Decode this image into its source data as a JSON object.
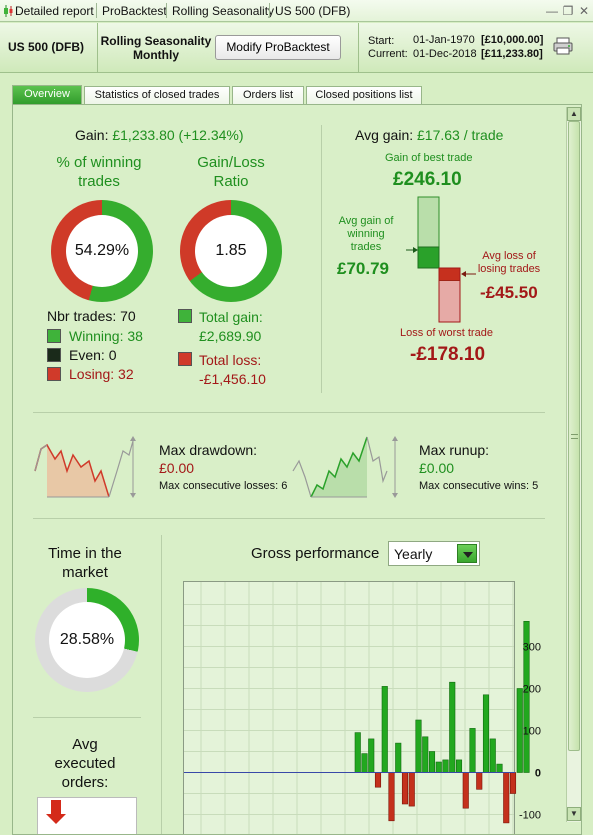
{
  "titlebar": {
    "crumbs": [
      "Detailed report",
      "ProBacktest",
      "Rolling Seasonality",
      "US 500 (DFB)"
    ]
  },
  "header": {
    "instrument": "US 500 (DFB)",
    "backtest_name_line1": "Rolling Seasonality",
    "backtest_name_line2": "Monthly",
    "modify_label": "Modify ProBacktest",
    "start_label": "Start:",
    "start_date": "01-Jan-1970",
    "start_value": "[£10,000.00]",
    "current_label": "Current:",
    "current_date": "01-Dec-2018",
    "current_value": "[£11,233.80]"
  },
  "tabs": [
    {
      "label": "Overview",
      "active": true
    },
    {
      "label": "Statistics of closed trades",
      "active": false
    },
    {
      "label": "Orders list",
      "active": false
    },
    {
      "label": "Closed positions list",
      "active": false
    }
  ],
  "overview": {
    "gain_label": "Gain:",
    "gain_value": "£1,233.80 (+12.34%)",
    "pct_winning_title_line1": "% of winning",
    "pct_winning_title_line2": "trades",
    "pct_winning_value": "54.29%",
    "pct_winning_fraction": 0.5429,
    "gl_ratio_title_line1": "Gain/Loss",
    "gl_ratio_title_line2": "Ratio",
    "gl_ratio_value": "1.85",
    "gl_ratio_fraction": 0.649,
    "nbr_trades": "Nbr trades: 70",
    "winning": "Winning: 38",
    "even": "Even: 0",
    "losing": "Losing: 32",
    "total_gain_label": "Total gain:",
    "total_gain_value": "£2,689.90",
    "total_loss_label": "Total loss:",
    "total_loss_value": "-£1,456.10",
    "avg_gain_label": "Avg gain:",
    "avg_gain_value": "£17.63 / trade",
    "best_trade_label": "Gain of best trade",
    "best_trade_value": "£246.10",
    "avg_gain_winning_label_line1": "Avg gain of",
    "avg_gain_winning_label_line2": "winning",
    "avg_gain_winning_label_line3": "trades",
    "avg_gain_winning_value": "£70.79",
    "avg_loss_losing_label_line1": "Avg loss of",
    "avg_loss_losing_label_line2": "losing trades",
    "avg_loss_losing_value": "-£45.50",
    "worst_trade_label": "Loss of worst trade",
    "worst_trade_value": "-£178.10",
    "max_drawdown_label": "Max drawdown:",
    "max_drawdown_value": "£0.00",
    "max_consec_losses": "Max consecutive losses: 6",
    "max_runup_label": "Max runup:",
    "max_runup_value": "£0.00",
    "max_consec_wins": "Max consecutive wins: 5",
    "time_in_market_line1": "Time in the",
    "time_in_market_line2": "market",
    "time_in_market_value": "28.58%",
    "time_in_market_fraction": 0.2858,
    "avg_exec_line1": "Avg",
    "avg_exec_line2": "executed",
    "avg_exec_line3": "orders:",
    "gross_perf_label": "Gross performance",
    "period_options": [
      "Yearly"
    ],
    "period_selected": "Yearly"
  },
  "colors": {
    "gain": "#1f8f1f",
    "loss": "#a31818",
    "bar_up": "#22a81f",
    "bar_down": "#c4301c",
    "zero_line": "#3848a8"
  },
  "chart_data": {
    "type": "bar",
    "title": "Gross performance",
    "y_ticks": [
      300,
      200,
      100,
      0,
      -100
    ],
    "ylim": [
      -180,
      370
    ],
    "grid": true,
    "values": [
      0,
      0,
      0,
      0,
      0,
      0,
      0,
      0,
      0,
      0,
      0,
      0,
      0,
      0,
      0,
      0,
      0,
      0,
      0,
      0,
      0,
      0,
      0,
      0,
      0,
      95,
      45,
      80,
      -35,
      205,
      -115,
      70,
      -75,
      -80,
      125,
      85,
      50,
      25,
      30,
      215,
      30,
      -85,
      105,
      -40,
      185,
      80,
      20,
      -120,
      -50,
      200,
      360
    ]
  }
}
